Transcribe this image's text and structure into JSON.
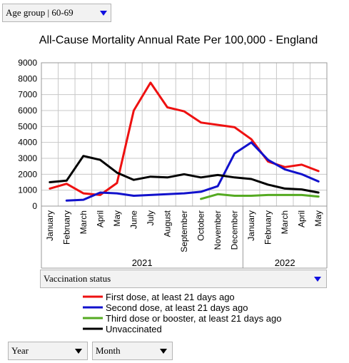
{
  "controls": {
    "age_group": "Age group | 60-69",
    "vaccination_status": "Vaccination status",
    "year_select": "Year",
    "month_select": "Month"
  },
  "chart_data": {
    "type": "line",
    "title": "All-Cause Mortality Annual Rate Per 100,000 - England",
    "xlabel": "",
    "ylabel": "",
    "ylim": [
      0,
      9000
    ],
    "yticks": [
      0,
      1000,
      2000,
      3000,
      4000,
      5000,
      6000,
      7000,
      8000,
      9000
    ],
    "grid": true,
    "legend_position": "bottom",
    "categories": [
      "January",
      "February",
      "March",
      "April",
      "May",
      "June",
      "July",
      "August",
      "September",
      "October",
      "November",
      "December",
      "January",
      "February",
      "March",
      "April",
      "May"
    ],
    "year_groups": [
      {
        "label": "2021",
        "start": 0,
        "end": 11
      },
      {
        "label": "2022",
        "start": 12,
        "end": 16
      }
    ],
    "series": [
      {
        "name": "First dose, at least 21 days ago",
        "color": "#ee1111",
        "values": [
          1100,
          1400,
          800,
          700,
          1450,
          6000,
          7750,
          6200,
          5950,
          5250,
          5100,
          4950,
          4200,
          2800,
          2450,
          2600,
          2200
        ]
      },
      {
        "name": "Second dose, at least 21 days ago",
        "color": "#1111cc",
        "values": [
          null,
          350,
          400,
          850,
          800,
          650,
          700,
          750,
          800,
          900,
          1250,
          3300,
          4000,
          2900,
          2300,
          2000,
          1550
        ]
      },
      {
        "name": "Third dose or booster, at least 21 days ago",
        "color": "#55aa22",
        "values": [
          null,
          null,
          null,
          null,
          null,
          null,
          null,
          null,
          null,
          450,
          750,
          650,
          650,
          700,
          700,
          700,
          600
        ]
      },
      {
        "name": "Unvaccinated",
        "color": "#000000",
        "values": [
          1500,
          1600,
          3150,
          2900,
          2100,
          1650,
          1850,
          1800,
          2000,
          1800,
          1950,
          1800,
          1700,
          1350,
          1100,
          1050,
          850
        ]
      }
    ]
  }
}
